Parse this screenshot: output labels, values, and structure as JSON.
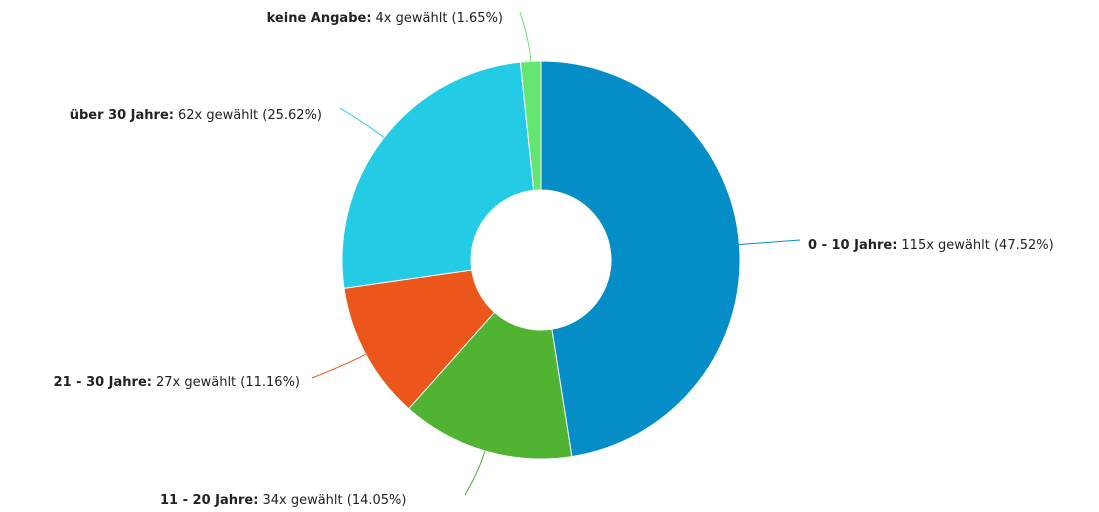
{
  "chart_data": {
    "type": "donut",
    "categories": [
      "0 - 10 Jahre:",
      "11 - 20 Jahre:",
      "21 - 30 Jahre:",
      "über 30 Jahre:",
      "keine Angabe:"
    ],
    "values": [
      115,
      34,
      27,
      62,
      4
    ],
    "value_labels": [
      "115x gewählt (47.52%)",
      "34x gewählt (14.05%)",
      "27x gewählt (11.16%)",
      "62x gewählt (25.62%)",
      "4x gewählt (1.65%)"
    ],
    "colors": [
      "#058dc7",
      "#50b432",
      "#ed561b",
      "#24cbe5",
      "#64e572"
    ]
  }
}
